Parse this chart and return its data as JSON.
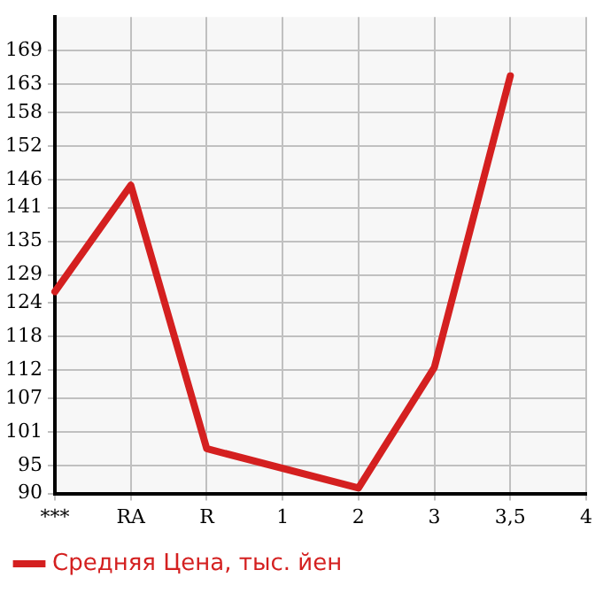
{
  "chart_data": {
    "type": "line",
    "categories": [
      "***",
      "RA",
      "R",
      "1",
      "2",
      "3",
      "3,5",
      "4"
    ],
    "series": [
      {
        "name": "Средняя Цена, тыс. йен",
        "color": "#d42020",
        "values": [
          126,
          145,
          98,
          null,
          91,
          112.5,
          164.5,
          null
        ]
      }
    ],
    "ylim": [
      90,
      175
    ],
    "yticks": [
      90,
      95,
      101,
      107,
      112,
      118,
      124,
      129,
      135,
      141,
      146,
      152,
      158,
      163,
      169
    ],
    "grid": true,
    "legend": "bottom",
    "marker": "none"
  }
}
